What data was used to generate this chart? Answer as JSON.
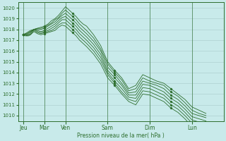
{
  "bg_color": "#c8eaea",
  "grid_color": "#a8caca",
  "line_color": "#2d6e2d",
  "marker_color": "#2d6e2d",
  "xlabel_text": "Pression niveau de la mer( hPa )",
  "ylim": [
    1009.5,
    1020.5
  ],
  "yticks": [
    1010,
    1011,
    1012,
    1013,
    1014,
    1015,
    1016,
    1017,
    1018,
    1019,
    1020
  ],
  "x_labels": [
    "Jeu",
    "Mar",
    "Ven",
    "Sam",
    "Dim",
    "Lun"
  ],
  "x_tick_pos": [
    0,
    24,
    48,
    96,
    144,
    192
  ],
  "xlim": [
    -6,
    228
  ],
  "series": [
    {
      "x": [
        0,
        2,
        4,
        6,
        8,
        12,
        16,
        20,
        24,
        28,
        32,
        36,
        40,
        44,
        48,
        52,
        56,
        60,
        64,
        68,
        72,
        80,
        88,
        96,
        104,
        112,
        120,
        128,
        136,
        144,
        152,
        160,
        168,
        176,
        184,
        192,
        200,
        208
      ],
      "y": [
        1017.5,
        1017.6,
        1017.7,
        1017.8,
        1017.9,
        1018.0,
        1018.1,
        1018.2,
        1018.3,
        1018.5,
        1018.8,
        1019.0,
        1019.3,
        1019.7,
        1020.1,
        1019.8,
        1019.5,
        1019.2,
        1018.8,
        1018.5,
        1018.3,
        1017.5,
        1016.5,
        1015.0,
        1014.2,
        1013.5,
        1012.5,
        1012.8,
        1013.8,
        1013.5,
        1013.2,
        1013.0,
        1012.5,
        1012.0,
        1011.5,
        1010.8,
        1010.5,
        1010.2
      ]
    },
    {
      "x": [
        0,
        2,
        4,
        6,
        8,
        12,
        16,
        20,
        24,
        28,
        32,
        36,
        40,
        44,
        48,
        52,
        56,
        60,
        64,
        68,
        72,
        80,
        88,
        96,
        104,
        112,
        120,
        128,
        136,
        144,
        152,
        160,
        168,
        176,
        184,
        192,
        200,
        208
      ],
      "y": [
        1017.5,
        1017.6,
        1017.6,
        1017.7,
        1017.8,
        1018.0,
        1018.1,
        1018.1,
        1018.2,
        1018.4,
        1018.6,
        1018.9,
        1019.1,
        1019.5,
        1019.8,
        1019.5,
        1019.2,
        1018.9,
        1018.5,
        1018.2,
        1017.9,
        1017.2,
        1016.2,
        1014.8,
        1014.0,
        1013.3,
        1012.3,
        1012.5,
        1013.5,
        1013.2,
        1013.0,
        1012.8,
        1012.2,
        1011.8,
        1011.2,
        1010.5,
        1010.2,
        1010.0
      ]
    },
    {
      "x": [
        0,
        2,
        4,
        6,
        8,
        12,
        16,
        20,
        24,
        28,
        32,
        36,
        40,
        44,
        48,
        52,
        56,
        60,
        64,
        68,
        72,
        80,
        88,
        96,
        104,
        112,
        120,
        128,
        136,
        144,
        152,
        160,
        168,
        176,
        184,
        192,
        200,
        208
      ],
      "y": [
        1017.5,
        1017.5,
        1017.6,
        1017.7,
        1017.8,
        1018.0,
        1018.0,
        1018.0,
        1018.1,
        1018.3,
        1018.5,
        1018.7,
        1019.0,
        1019.3,
        1019.5,
        1019.2,
        1018.9,
        1018.6,
        1018.2,
        1017.9,
        1017.6,
        1016.9,
        1016.0,
        1014.5,
        1013.8,
        1013.0,
        1012.1,
        1012.2,
        1013.2,
        1013.0,
        1012.8,
        1012.5,
        1011.9,
        1011.5,
        1010.9,
        1010.2,
        1010.0,
        1009.8
      ]
    },
    {
      "x": [
        0,
        2,
        4,
        6,
        8,
        12,
        16,
        20,
        24,
        28,
        32,
        36,
        40,
        44,
        48,
        52,
        56,
        60,
        64,
        68,
        72,
        80,
        88,
        96,
        104,
        112,
        120,
        128,
        136,
        144,
        152,
        160,
        168,
        176,
        184,
        192,
        200,
        208
      ],
      "y": [
        1017.5,
        1017.5,
        1017.5,
        1017.6,
        1017.7,
        1018.0,
        1017.9,
        1017.8,
        1017.9,
        1018.1,
        1018.3,
        1018.5,
        1018.8,
        1019.1,
        1019.2,
        1018.9,
        1018.6,
        1018.3,
        1017.9,
        1017.6,
        1017.3,
        1016.6,
        1015.7,
        1014.2,
        1013.5,
        1012.8,
        1011.9,
        1011.9,
        1012.9,
        1012.8,
        1012.5,
        1012.2,
        1011.6,
        1011.2,
        1010.6,
        1009.9,
        1009.7,
        1009.5
      ]
    },
    {
      "x": [
        0,
        2,
        4,
        6,
        8,
        12,
        16,
        20,
        24,
        28,
        32,
        36,
        40,
        44,
        48,
        52,
        56,
        60,
        64,
        68,
        72,
        80,
        88,
        96,
        104,
        112,
        120,
        128,
        136,
        144,
        152,
        160,
        168,
        176,
        184,
        192,
        200,
        208
      ],
      "y": [
        1017.5,
        1017.5,
        1017.5,
        1017.5,
        1017.6,
        1018.0,
        1017.8,
        1017.7,
        1017.8,
        1017.9,
        1018.1,
        1018.3,
        1018.6,
        1018.9,
        1018.9,
        1018.6,
        1018.3,
        1018.0,
        1017.6,
        1017.3,
        1017.0,
        1016.3,
        1015.4,
        1014.0,
        1013.2,
        1012.5,
        1011.7,
        1011.6,
        1012.6,
        1012.5,
        1012.2,
        1011.9,
        1011.3,
        1010.9,
        1010.3,
        1009.6,
        1009.4,
        1009.2
      ]
    },
    {
      "x": [
        0,
        2,
        4,
        6,
        8,
        12,
        16,
        20,
        24,
        28,
        32,
        36,
        40,
        44,
        48,
        52,
        56,
        60,
        64,
        68,
        72,
        80,
        88,
        96,
        104,
        112,
        120,
        128,
        136,
        144,
        152,
        160,
        168,
        176,
        184,
        192,
        200,
        208
      ],
      "y": [
        1017.5,
        1017.5,
        1017.4,
        1017.5,
        1017.5,
        1017.9,
        1017.7,
        1017.6,
        1017.7,
        1017.8,
        1017.9,
        1018.1,
        1018.4,
        1018.6,
        1018.6,
        1018.3,
        1018.0,
        1017.7,
        1017.3,
        1017.0,
        1016.7,
        1016.0,
        1015.1,
        1013.8,
        1013.0,
        1012.2,
        1011.5,
        1011.3,
        1012.3,
        1012.2,
        1011.9,
        1011.6,
        1011.0,
        1010.6,
        1010.0,
        1009.3,
        1009.1,
        1008.9
      ]
    },
    {
      "x": [
        0,
        2,
        4,
        6,
        8,
        12,
        16,
        20,
        24,
        28,
        32,
        36,
        40,
        44,
        48,
        52,
        56,
        60,
        64,
        68,
        72,
        80,
        88,
        96,
        104,
        112,
        120,
        128,
        136,
        144,
        152,
        160,
        168,
        176,
        184,
        192,
        200,
        208
      ],
      "y": [
        1017.5,
        1017.4,
        1017.4,
        1017.4,
        1017.5,
        1017.8,
        1017.6,
        1017.5,
        1017.6,
        1017.7,
        1017.8,
        1017.9,
        1018.2,
        1018.4,
        1018.3,
        1018.0,
        1017.7,
        1017.4,
        1017.0,
        1016.7,
        1016.4,
        1015.7,
        1014.8,
        1013.5,
        1012.8,
        1012.0,
        1011.3,
        1011.0,
        1012.0,
        1011.9,
        1011.6,
        1011.3,
        1010.7,
        1010.3,
        1009.7,
        1009.0,
        1008.8,
        1008.6
      ]
    }
  ],
  "vline_positions": [
    0,
    24,
    48,
    96,
    144,
    192
  ]
}
